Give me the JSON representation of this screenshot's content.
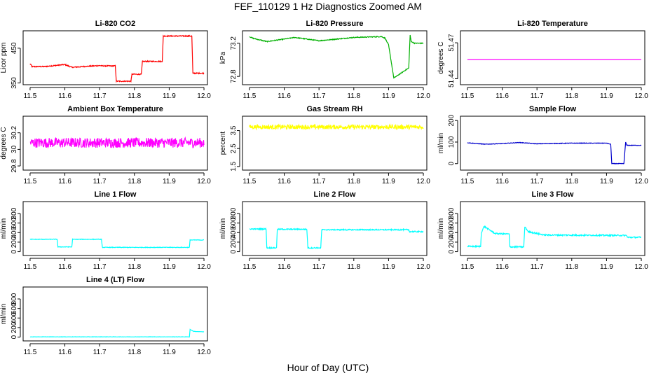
{
  "title": "FEF_110129  1 Hz Diagnostics Zoomed AM",
  "xlabel": "Hour of Day (UTC)",
  "chart_data": [
    {
      "type": "line",
      "title": "Li-820 CO2",
      "ylabel": "Licor ppm",
      "color": "#ff0000",
      "xlim": [
        11.48,
        12.01
      ],
      "ylim": [
        345,
        500
      ],
      "xticks": [
        11.5,
        11.6,
        11.7,
        11.8,
        11.9,
        12.0
      ],
      "yticks": [
        350,
        450
      ],
      "noise": 1.5,
      "series": [
        {
          "x": [
            11.5,
            11.502,
            11.505,
            11.54,
            11.6,
            11.62,
            11.7,
            11.71,
            11.745,
            11.748,
            11.79,
            11.793,
            11.82,
            11.823,
            11.88,
            11.883,
            11.965,
            11.968,
            12.0
          ],
          "y": [
            405,
            403,
            397,
            397,
            403,
            395,
            400,
            399,
            399,
            355,
            355,
            375,
            375,
            412,
            412,
            485,
            485,
            378,
            378
          ]
        }
      ]
    },
    {
      "type": "line",
      "title": "Li-820 Pressure",
      "ylabel": "kPa",
      "color": "#00b000",
      "xlim": [
        11.48,
        12.01
      ],
      "ylim": [
        72.7,
        73.35
      ],
      "xticks": [
        11.5,
        11.6,
        11.7,
        11.8,
        11.9,
        12.0
      ],
      "yticks": [
        72.8,
        73.2
      ],
      "noise": 0.005,
      "series": [
        {
          "x": [
            11.5,
            11.51,
            11.55,
            11.6,
            11.63,
            11.7,
            11.8,
            11.88,
            11.89,
            11.9,
            11.915,
            11.95,
            11.958,
            11.962,
            11.965,
            11.975,
            12.0
          ],
          "y": [
            73.28,
            73.26,
            73.22,
            73.25,
            73.27,
            73.23,
            73.27,
            73.28,
            73.26,
            73.18,
            72.78,
            72.88,
            72.9,
            73.3,
            73.22,
            73.2,
            73.2
          ]
        }
      ]
    },
    {
      "type": "line",
      "title": "Li-820 Temperature",
      "ylabel": "degrees C",
      "color": "#ff00ff",
      "xlim": [
        11.48,
        12.01
      ],
      "ylim": [
        51.435,
        51.48
      ],
      "xticks": [
        11.5,
        11.6,
        11.7,
        11.8,
        11.9,
        12.0
      ],
      "yticks": [
        51.44,
        51.47
      ],
      "noise": 0,
      "series": [
        {
          "x": [
            11.5,
            12.0
          ],
          "y": [
            51.456,
            51.456
          ]
        }
      ]
    },
    {
      "type": "line",
      "title": "Ambient Box Temperature",
      "ylabel": "degrees C",
      "color": "#ff00ff",
      "xlim": [
        11.48,
        12.01
      ],
      "ylim": [
        29.75,
        30.4
      ],
      "xticks": [
        11.5,
        11.6,
        11.7,
        11.8,
        11.9,
        12.0
      ],
      "yticks": [
        29.8,
        30.0,
        30.2
      ],
      "noise": 0.06,
      "series": [
        {
          "x": [
            11.5,
            12.0
          ],
          "y": [
            30.08,
            30.08
          ]
        }
      ]
    },
    {
      "type": "line",
      "title": "Gas Stream RH",
      "ylabel": "percent",
      "color": "#ffff00",
      "xlim": [
        11.48,
        12.01
      ],
      "ylim": [
        1.3,
        4.3
      ],
      "xticks": [
        11.5,
        11.6,
        11.7,
        11.8,
        11.9,
        12.0
      ],
      "yticks": [
        1.5,
        2.5,
        3.5
      ],
      "noise": 0.12,
      "series": [
        {
          "x": [
            11.5,
            12.0
          ],
          "y": [
            3.7,
            3.7
          ]
        }
      ]
    },
    {
      "type": "line",
      "title": "Sample Flow",
      "ylabel": "ml/min",
      "color": "#0000cc",
      "xlim": [
        11.48,
        12.01
      ],
      "ylim": [
        -30,
        220
      ],
      "xticks": [
        11.5,
        11.6,
        11.7,
        11.8,
        11.9,
        12.0
      ],
      "yticks": [
        0,
        100,
        200
      ],
      "noise": 1.2,
      "series": [
        {
          "x": [
            11.5,
            11.55,
            11.6,
            11.65,
            11.7,
            11.8,
            11.9,
            11.912,
            11.915,
            11.95,
            11.955,
            11.958,
            11.97,
            12.0
          ],
          "y": [
            97,
            90,
            93,
            98,
            92,
            95,
            95,
            90,
            0,
            0,
            100,
            85,
            85,
            85
          ]
        }
      ]
    },
    {
      "type": "line",
      "title": "Line 1 Flow",
      "ylabel": "ml/min",
      "color": "#00ffff",
      "xlim": [
        11.48,
        12.01
      ],
      "ylim": [
        -80,
        1050
      ],
      "xticks": [
        11.5,
        11.6,
        11.7,
        11.8,
        11.9,
        12.0
      ],
      "yticks": [
        0,
        200,
        400,
        600,
        800
      ],
      "noise": 6,
      "series": [
        {
          "x": [
            11.5,
            11.578,
            11.58,
            11.62,
            11.622,
            11.705,
            11.708,
            11.958,
            11.96,
            12.0
          ],
          "y": [
            260,
            260,
            100,
            100,
            260,
            260,
            90,
            90,
            245,
            245
          ]
        }
      ]
    },
    {
      "type": "line",
      "title": "Line 2 Flow",
      "ylabel": "ml/min",
      "color": "#00ffff",
      "xlim": [
        11.48,
        12.01
      ],
      "ylim": [
        -80,
        1050
      ],
      "xticks": [
        11.5,
        11.6,
        11.7,
        11.8,
        11.9,
        12.0
      ],
      "yticks": [
        0,
        200,
        400,
        600,
        800
      ],
      "noise": 12,
      "series": [
        {
          "x": [
            11.5,
            11.548,
            11.55,
            11.578,
            11.58,
            11.665,
            11.668,
            11.705,
            11.708,
            11.958,
            11.96,
            12.0
          ],
          "y": [
            475,
            475,
            80,
            80,
            470,
            470,
            80,
            80,
            460,
            460,
            420,
            420
          ]
        }
      ]
    },
    {
      "type": "line",
      "title": "Line 3 Flow",
      "ylabel": "ml/min",
      "color": "#00ffff",
      "xlim": [
        11.48,
        12.01
      ],
      "ylim": [
        -80,
        1050
      ],
      "xticks": [
        11.5,
        11.6,
        11.7,
        11.8,
        11.9,
        12.0
      ],
      "yticks": [
        0,
        200,
        400,
        600,
        800
      ],
      "noise": 14,
      "series": [
        {
          "x": [
            11.5,
            11.538,
            11.54,
            11.548,
            11.58,
            11.62,
            11.622,
            11.662,
            11.665,
            11.675,
            11.72,
            11.958,
            11.96,
            12.0
          ],
          "y": [
            110,
            110,
            400,
            530,
            380,
            370,
            100,
            100,
            520,
            420,
            350,
            340,
            300,
            300
          ]
        }
      ]
    },
    {
      "type": "line",
      "title": "Line 4 (LT) Flow",
      "ylabel": "ml/min",
      "color": "#00ffff",
      "xlim": [
        11.48,
        12.01
      ],
      "ylim": [
        -80,
        1050
      ],
      "xticks": [
        11.5,
        11.6,
        11.7,
        11.8,
        11.9,
        12.0
      ],
      "yticks": [
        0,
        200,
        400,
        600,
        800
      ],
      "noise": 3,
      "series": [
        {
          "x": [
            11.5,
            11.958,
            11.96,
            11.97,
            12.0
          ],
          "y": [
            5,
            5,
            160,
            120,
            110
          ]
        }
      ]
    }
  ]
}
